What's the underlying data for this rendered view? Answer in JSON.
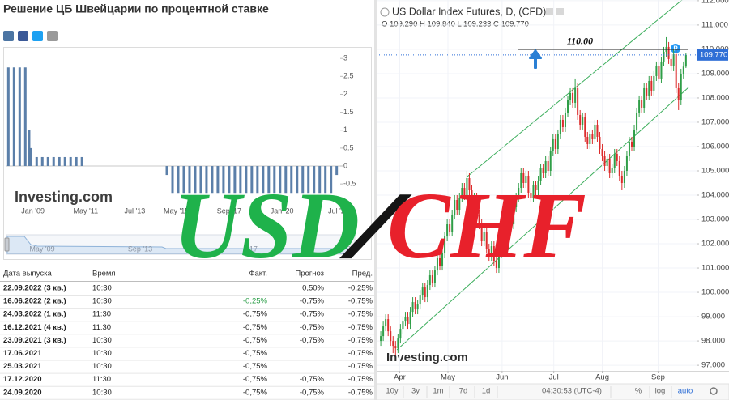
{
  "header": {
    "title": "Решение ЦБ Швейцарии по процентной ставке"
  },
  "chart_data": [
    {
      "type": "bar",
      "x": [
        "2007-12",
        "2008-03",
        "2008-06",
        "2008-09",
        "2008-11",
        "2008-12",
        "2009-03",
        "2009-06",
        "2009-09",
        "2009-12",
        "2010-03",
        "2010-06",
        "2010-09",
        "2010-12",
        "2011-03",
        "2014-12",
        "2015-03",
        "2015-06",
        "2015-09",
        "2015-12",
        "2016-03",
        "2016-06",
        "2016-09",
        "2016-12",
        "2017-03",
        "2017-06",
        "2017-09",
        "2017-12",
        "2018-03",
        "2018-06",
        "2018-09",
        "2018-12",
        "2019-03",
        "2019-06",
        "2019-09",
        "2019-12",
        "2020-03",
        "2020-06",
        "2020-09",
        "2020-12",
        "2021-03",
        "2021-06",
        "2021-09",
        "2021-12",
        "2022-03",
        "2022-06"
      ],
      "values": [
        2.75,
        2.75,
        2.75,
        2.75,
        1,
        0.5,
        0.25,
        0.25,
        0.25,
        0.25,
        0.25,
        0.25,
        0.25,
        0.25,
        0.25,
        -0.25,
        -0.75,
        -0.75,
        -0.75,
        -0.75,
        -0.75,
        -0.75,
        -0.75,
        -0.75,
        -0.75,
        -0.75,
        -0.75,
        -0.75,
        -0.75,
        -0.75,
        -0.75,
        -0.75,
        -0.75,
        -0.75,
        -0.75,
        -0.75,
        -0.75,
        -0.75,
        -0.75,
        -0.75,
        -0.75,
        -0.75,
        -0.75,
        -0.75,
        -0.75,
        -0.25
      ],
      "color": "#5b7fa9",
      "xlim": [
        "2007-11",
        "2022-07"
      ],
      "xticks": [
        {
          "value": "2009-01",
          "label": "Jan '09"
        },
        {
          "value": "2011-05",
          "label": "May '11"
        },
        {
          "value": "2013-07",
          "label": "Jul '13"
        },
        {
          "value": "2015-05",
          "label": "May '15"
        },
        {
          "value": "2017-09",
          "label": "Sep '17"
        },
        {
          "value": "2020-01",
          "label": "Jan '20"
        },
        {
          "value": "2022-07",
          "label": "Jul '22"
        }
      ],
      "ylim": [
        -0.835,
        3.23
      ],
      "yticks": [
        3,
        2.5,
        2,
        1.5,
        1,
        0.5,
        0,
        -0.5
      ],
      "watermark": "Investing.com",
      "navigator_labels": [
        "May '09",
        "Sep '13",
        "'17",
        "'22"
      ]
    },
    {
      "type": "candlestick",
      "title": "US Dollar Index Futures, D, (CFD)",
      "ohlc_label": "O 109.290 H 109.840 L 109.233 C 109.770",
      "open": [
        98.0,
        98.2,
        98.6,
        98.9,
        98.4,
        98.0,
        97.8,
        97.7,
        98.1,
        98.5,
        98.8,
        99.0,
        98.7,
        99.2,
        99.6,
        99.3,
        99.5,
        99.9,
        100.2,
        99.8,
        100.3,
        100.7,
        100.4,
        100.9,
        101.4,
        101.1,
        101.6,
        102.3,
        102.8,
        102.5,
        103.2,
        103.8,
        103.4,
        103.9,
        104.3,
        104.0,
        104.7,
        104.2,
        103.7,
        103.9,
        103.2,
        102.8,
        102.1,
        102.5,
        101.8,
        101.5,
        101.9,
        101.3,
        101.0,
        101.6,
        102.2,
        101.9,
        102.7,
        103.1,
        102.8,
        103.5,
        103.9,
        104.3,
        104.9,
        104.5,
        104.8,
        104.1,
        103.9,
        104.4,
        104.2,
        104.6,
        105.1,
        104.9,
        105.4,
        105.0,
        105.8,
        106.3,
        105.9,
        106.5,
        107.1,
        106.8,
        107.4,
        107.9,
        108.2,
        107.8,
        108.4,
        107.3,
        106.9,
        107.2,
        106.4,
        106.1,
        106.5,
        106.3,
        106.9,
        106.4,
        105.9,
        105.6,
        105.2,
        105.5,
        104.9,
        105.1,
        105.7,
        105.4,
        104.8,
        104.5,
        105.0,
        105.6,
        106.2,
        106.0,
        106.7,
        107.4,
        107.9,
        107.6,
        108.4,
        108.1,
        108.7,
        108.3,
        108.9,
        109.3,
        108.8,
        109.5,
        109.9,
        110.1,
        109.6,
        109.3,
        109.8,
        108.4,
        107.9,
        109.0,
        109.29
      ],
      "high": [
        98.4,
        98.8,
        99.1,
        99.1,
        98.6,
        98.2,
        98.0,
        98.3,
        98.7,
        99.0,
        99.2,
        99.2,
        99.4,
        99.8,
        99.8,
        99.7,
        100.1,
        100.4,
        100.4,
        100.5,
        100.9,
        100.9,
        101.1,
        101.6,
        101.6,
        101.8,
        102.5,
        103.0,
        103.0,
        103.4,
        104.0,
        104.0,
        104.1,
        104.5,
        104.5,
        105.0,
        104.9,
        104.4,
        104.1,
        104.1,
        103.4,
        103.0,
        102.7,
        102.7,
        102.0,
        102.1,
        102.1,
        101.5,
        101.8,
        102.4,
        102.4,
        102.9,
        103.3,
        103.3,
        103.7,
        104.1,
        104.5,
        105.1,
        105.1,
        105.0,
        105.0,
        104.3,
        104.6,
        104.6,
        104.8,
        105.3,
        105.3,
        105.6,
        105.6,
        106.0,
        106.5,
        106.5,
        106.7,
        107.3,
        107.3,
        107.6,
        108.1,
        108.4,
        108.4,
        108.8,
        108.6,
        107.5,
        107.4,
        107.4,
        106.6,
        106.7,
        106.7,
        107.1,
        107.1,
        106.6,
        106.1,
        105.8,
        105.7,
        105.7,
        105.3,
        105.9,
        105.9,
        105.6,
        105.0,
        105.2,
        105.8,
        106.4,
        106.4,
        106.9,
        107.6,
        108.1,
        108.1,
        108.6,
        108.6,
        108.9,
        108.9,
        109.1,
        109.5,
        109.5,
        109.7,
        110.1,
        110.5,
        110.3,
        109.8,
        110.0,
        110.0,
        108.6,
        109.2,
        109.5,
        109.84
      ],
      "low": [
        97.8,
        98.0,
        98.4,
        98.2,
        97.8,
        97.5,
        97.4,
        97.5,
        97.9,
        98.3,
        98.6,
        98.5,
        98.5,
        99.0,
        99.1,
        99.1,
        99.3,
        99.7,
        99.6,
        99.6,
        100.1,
        100.2,
        100.2,
        100.7,
        100.9,
        100.9,
        101.4,
        102.1,
        102.3,
        102.3,
        103.0,
        103.2,
        103.2,
        103.7,
        103.8,
        103.8,
        104.0,
        103.5,
        103.5,
        103.0,
        102.6,
        101.9,
        101.9,
        101.6,
        101.3,
        101.3,
        101.1,
        100.8,
        100.8,
        101.4,
        101.7,
        101.7,
        102.5,
        102.6,
        102.6,
        103.3,
        103.7,
        104.1,
        104.3,
        104.3,
        103.9,
        103.7,
        103.7,
        104.0,
        104.0,
        104.4,
        104.7,
        104.7,
        104.8,
        104.8,
        105.6,
        105.7,
        105.7,
        106.3,
        106.6,
        106.6,
        107.2,
        107.7,
        107.6,
        107.6,
        107.1,
        106.7,
        106.7,
        106.2,
        105.9,
        105.9,
        106.1,
        106.1,
        106.2,
        105.7,
        105.4,
        105.0,
        105.0,
        104.7,
        104.7,
        104.9,
        105.2,
        104.6,
        104.2,
        104.3,
        104.8,
        105.4,
        105.8,
        105.8,
        106.5,
        107.2,
        107.4,
        107.4,
        107.9,
        107.9,
        108.1,
        108.1,
        108.7,
        108.6,
        108.6,
        109.3,
        109.7,
        109.4,
        109.1,
        109.1,
        108.2,
        107.5,
        107.7,
        108.8,
        109.233
      ],
      "close": [
        98.2,
        98.6,
        98.9,
        98.4,
        98.0,
        97.8,
        97.7,
        98.1,
        98.5,
        98.8,
        99.0,
        98.7,
        99.2,
        99.6,
        99.3,
        99.5,
        99.9,
        100.2,
        99.8,
        100.3,
        100.7,
        100.4,
        100.9,
        101.4,
        101.1,
        101.6,
        102.3,
        102.8,
        102.5,
        103.2,
        103.8,
        103.4,
        103.9,
        104.3,
        104.0,
        104.7,
        104.2,
        103.7,
        103.9,
        103.2,
        102.8,
        102.1,
        102.5,
        101.8,
        101.5,
        101.9,
        101.3,
        101.0,
        101.6,
        102.2,
        101.9,
        102.7,
        103.1,
        102.8,
        103.5,
        103.9,
        104.3,
        104.9,
        104.5,
        104.8,
        104.1,
        103.9,
        104.4,
        104.2,
        104.6,
        105.1,
        104.9,
        105.4,
        105.0,
        105.8,
        106.3,
        105.9,
        106.5,
        107.1,
        106.8,
        107.4,
        107.9,
        108.2,
        107.8,
        108.4,
        107.3,
        106.9,
        107.2,
        106.4,
        106.1,
        106.5,
        106.3,
        106.9,
        106.4,
        105.9,
        105.6,
        105.2,
        105.5,
        104.9,
        105.1,
        105.7,
        105.4,
        104.8,
        104.5,
        105.0,
        105.6,
        106.2,
        106.0,
        106.7,
        107.4,
        107.9,
        107.6,
        108.4,
        108.1,
        108.7,
        108.3,
        108.9,
        109.3,
        108.8,
        109.5,
        109.9,
        110.1,
        109.6,
        109.3,
        109.8,
        108.4,
        107.9,
        109.0,
        109.29,
        109.77
      ],
      "up_color": "#2f9e47",
      "down_color": "#dc2b2b",
      "xlim": [
        -1.67,
        128.33
      ],
      "xticks": [
        {
          "value": 7.7,
          "label": "Apr"
        },
        {
          "value": 27.3,
          "label": "May"
        },
        {
          "value": 49.3,
          "label": "Jun"
        },
        {
          "value": 70.3,
          "label": "Jul"
        },
        {
          "value": 90,
          "label": "Aug"
        },
        {
          "value": 112.7,
          "label": "Sep"
        }
      ],
      "ylim": [
        96.77,
        112.03
      ],
      "yticks": [
        {
          "value": 97,
          "label": "97.000"
        },
        {
          "value": 98,
          "label": "98.000"
        },
        {
          "value": 99,
          "label": "99.000"
        },
        {
          "value": 100,
          "label": "100.000"
        },
        {
          "value": 101,
          "label": "101.000"
        },
        {
          "value": 102,
          "label": "102.000"
        },
        {
          "value": 103,
          "label": "103.000"
        },
        {
          "value": 104,
          "label": "104.000"
        },
        {
          "value": 105,
          "label": "105.000"
        },
        {
          "value": 106,
          "label": "106.000"
        },
        {
          "value": 107,
          "label": "107.000"
        },
        {
          "value": 108,
          "label": "108.000"
        },
        {
          "value": 109,
          "label": "109.000"
        },
        {
          "value": 110,
          "label": "110.000"
        },
        {
          "value": 111,
          "label": "111.000"
        },
        {
          "value": 112,
          "label": "112.000"
        }
      ],
      "grid": true,
      "annotations": [
        {
          "text": "110.00",
          "value": 110
        }
      ],
      "last_price": {
        "value": 109.77,
        "label": "109.770"
      },
      "badge": "P",
      "watermark": "Investing.com",
      "toolbar": [
        "10y",
        "3y",
        "1m",
        "7d",
        "1d",
        "04:30:53 (UTC-4)",
        "%",
        "log",
        "auto"
      ]
    }
  ],
  "table": {
    "columns": [
      "Дата выпуска",
      "Время",
      "Факт.",
      "Прогноз",
      "Пред."
    ],
    "rows": [
      [
        "22.09.2022 (3 кв.)",
        "10:30",
        null,
        "0,50%",
        "-0,25%"
      ],
      [
        "16.06.2022 (2 кв.)",
        "10:30",
        "-0,25%",
        "-0,75%",
        "-0,75%"
      ],
      [
        "24.03.2022 (1 кв.)",
        "11:30",
        "-0,75%",
        "-0,75%",
        "-0,75%"
      ],
      [
        "16.12.2021 (4 кв.)",
        "11:30",
        "-0,75%",
        "-0,75%",
        "-0,75%"
      ],
      [
        "23.09.2021 (3 кв.)",
        "10:30",
        "-0,75%",
        "-0,75%",
        "-0,75%"
      ],
      [
        "17.06.2021",
        "10:30",
        "-0,75%",
        null,
        "-0,75%"
      ],
      [
        "25.03.2021",
        "10:30",
        "-0,75%",
        null,
        "-0,75%"
      ],
      [
        "17.12.2020",
        "11:30",
        "-0,75%",
        "-0,75%",
        "-0,75%"
      ],
      [
        "24.09.2020",
        "10:30",
        "-0,75%",
        "-0,75%",
        "-0,75%"
      ]
    ]
  },
  "overlay": {
    "parts": [
      "USD",
      "/",
      "CHF"
    ],
    "colors": [
      "#1fb24b",
      "#151515",
      "#e8212b"
    ]
  }
}
